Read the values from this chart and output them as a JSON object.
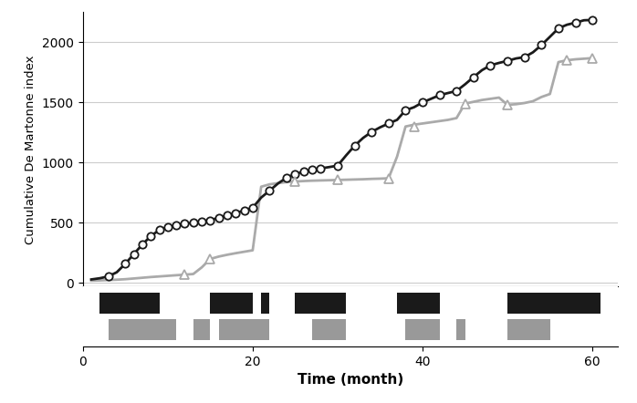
{
  "xlabel": "Time (month)",
  "ylabel": "Cumulative De Martonne index",
  "xlim": [
    0,
    63
  ],
  "yticks": [
    0,
    500,
    1000,
    1500,
    2000
  ],
  "xticks": [
    0,
    20,
    40,
    60
  ],
  "p93_x": [
    1,
    2,
    3,
    4,
    5,
    6,
    7,
    8,
    9,
    10,
    11,
    12,
    13,
    14,
    15,
    16,
    17,
    18,
    19,
    20,
    21,
    22,
    23,
    24,
    25,
    26,
    27,
    28,
    29,
    30,
    31,
    32,
    33,
    34,
    35,
    36,
    37,
    38,
    39,
    40,
    41,
    42,
    43,
    44,
    45,
    46,
    47,
    48,
    49,
    50,
    51,
    52,
    53,
    54,
    55,
    56,
    57,
    58,
    59,
    60
  ],
  "p93_y": [
    30,
    40,
    55,
    90,
    160,
    240,
    320,
    390,
    440,
    465,
    482,
    492,
    502,
    512,
    522,
    542,
    562,
    582,
    602,
    625,
    710,
    768,
    828,
    875,
    905,
    925,
    940,
    952,
    963,
    975,
    1060,
    1140,
    1205,
    1255,
    1293,
    1325,
    1355,
    1435,
    1460,
    1500,
    1530,
    1560,
    1578,
    1595,
    1650,
    1710,
    1768,
    1808,
    1828,
    1845,
    1865,
    1876,
    1916,
    1976,
    2045,
    2115,
    2145,
    2162,
    2182,
    2185
  ],
  "p97_x": [
    1,
    2,
    3,
    4,
    5,
    6,
    7,
    8,
    9,
    10,
    11,
    12,
    13,
    14,
    15,
    16,
    17,
    18,
    19,
    20,
    21,
    22,
    23,
    24,
    25,
    26,
    27,
    28,
    29,
    30,
    31,
    32,
    33,
    34,
    35,
    36,
    37,
    38,
    39,
    40,
    41,
    42,
    43,
    44,
    45,
    46,
    47,
    48,
    49,
    50,
    51,
    52,
    53,
    54,
    55,
    56,
    57,
    58,
    59,
    60
  ],
  "p97_y": [
    20,
    22,
    25,
    28,
    32,
    38,
    44,
    50,
    55,
    60,
    65,
    70,
    75,
    130,
    200,
    220,
    235,
    248,
    260,
    272,
    800,
    820,
    830,
    838,
    843,
    847,
    850,
    852,
    854,
    856,
    858,
    860,
    862,
    865,
    867,
    870,
    1050,
    1300,
    1315,
    1325,
    1335,
    1345,
    1355,
    1370,
    1490,
    1505,
    1520,
    1530,
    1540,
    1480,
    1485,
    1495,
    1510,
    1545,
    1570,
    1835,
    1850,
    1858,
    1863,
    1868
  ],
  "p93_mk_x": [
    3,
    5,
    6,
    7,
    8,
    9,
    10,
    11,
    12,
    13,
    14,
    15,
    16,
    17,
    18,
    19,
    20,
    22,
    24,
    25,
    26,
    27,
    28,
    30,
    32,
    34,
    36,
    38,
    40,
    42,
    44,
    46,
    48,
    50,
    52,
    54,
    56,
    58,
    60
  ],
  "p97_mk_x": [
    12,
    15,
    25,
    30,
    36,
    39,
    45,
    50,
    57,
    60
  ],
  "p97_mk_y": [
    70,
    200,
    843,
    856,
    870,
    1300,
    1490,
    1480,
    1850,
    1868
  ],
  "black_bars": [
    [
      2,
      9
    ],
    [
      15,
      20
    ],
    [
      21,
      22
    ],
    [
      25,
      31
    ],
    [
      37,
      42
    ],
    [
      50,
      61
    ]
  ],
  "gray_bars": [
    [
      3,
      11
    ],
    [
      13,
      15
    ],
    [
      16,
      22
    ],
    [
      27,
      31
    ],
    [
      38,
      42
    ],
    [
      44,
      45
    ],
    [
      50,
      55
    ]
  ],
  "line_color_p93": "#1a1a1a",
  "line_color_p97": "#aaaaaa",
  "background_color": "#ffffff"
}
